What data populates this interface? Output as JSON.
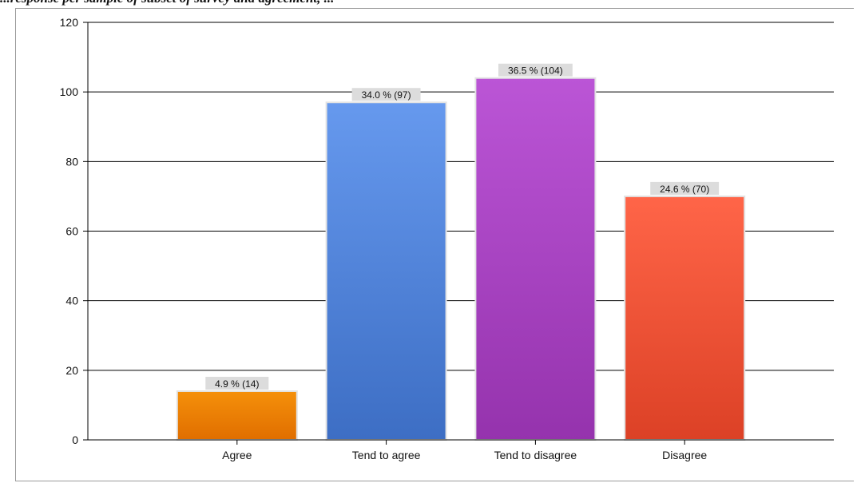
{
  "caption": "...response per sample of subset of survey and agreement, ...",
  "colors": {
    "agree": [
      "#f5900a",
      "#e06e00"
    ],
    "tend_agree": [
      "#6699ee",
      "#3d6ec4"
    ],
    "tend_disagree": [
      "#bb55d6",
      "#9533ad"
    ],
    "disagree": [
      "#ff6548",
      "#dc4126"
    ],
    "label_bg": "#dcdcdc",
    "gridline": "#000000"
  },
  "chart_data": {
    "type": "bar",
    "categories": [
      "Agree",
      "Tend to agree",
      "Tend to disagree",
      "Disagree"
    ],
    "values": [
      14,
      97,
      104,
      70
    ],
    "data_labels": [
      "4.9 % (14)",
      "34.0 % (97)",
      "36.5 % (104)",
      "24.6 % (70)"
    ],
    "yticks": [
      "0",
      "20",
      "40",
      "60",
      "80",
      "100",
      "120"
    ],
    "ylim": [
      0,
      120
    ],
    "grid": true,
    "legend": "none"
  }
}
